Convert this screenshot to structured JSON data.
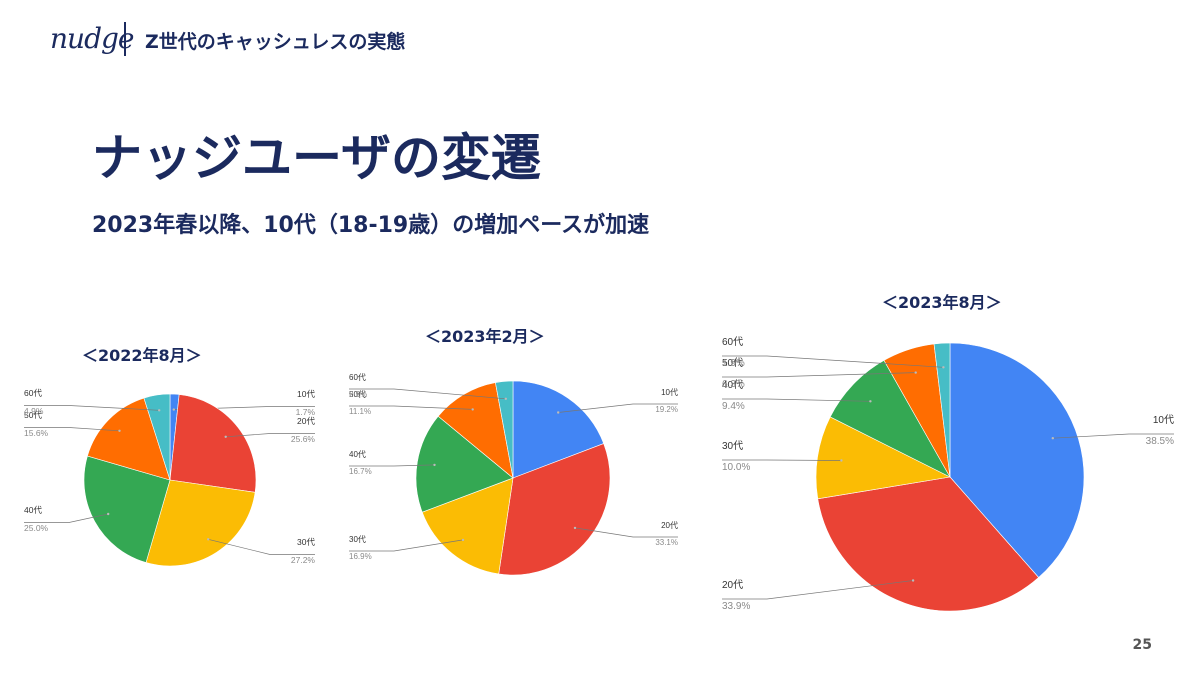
{
  "header": {
    "logo": "nudge",
    "title": "Z世代のキャッシュレスの実態"
  },
  "main": {
    "title": "ナッジユーザの変遷",
    "subtitle": "2023年春以降、10代（18-19歳）の増加ペースが加速"
  },
  "page_number": "25",
  "colors": {
    "10代": "#4285F4",
    "20代": "#EA4335",
    "30代": "#FBBC04",
    "40代": "#34A853",
    "50代": "#FF6D01",
    "60代": "#46BDC6"
  },
  "chart_data": [
    {
      "type": "pie",
      "title": "＜2022年8月＞",
      "categories": [
        "10代",
        "20代",
        "30代",
        "40代",
        "50代",
        "60代"
      ],
      "values": [
        1.7,
        25.6,
        27.2,
        25.0,
        15.6,
        4.9
      ],
      "labels": [
        "1.7%",
        "25.6%",
        "27.2%",
        "25.0%",
        "15.6%",
        "4.9%"
      ]
    },
    {
      "type": "pie",
      "title": "＜2023年2月＞",
      "categories": [
        "10代",
        "20代",
        "30代",
        "40代",
        "50代",
        "60代"
      ],
      "values": [
        19.2,
        33.1,
        16.9,
        16.7,
        11.1,
        2.9
      ],
      "labels": [
        "19.2%",
        "33.1%",
        "16.9%",
        "16.7%",
        "11.1%",
        "2.9%"
      ]
    },
    {
      "type": "pie",
      "title": "＜2023年8月＞",
      "categories": [
        "10代",
        "20代",
        "30代",
        "40代",
        "50代",
        "60代"
      ],
      "values": [
        38.5,
        33.9,
        10.0,
        9.4,
        6.3,
        1.9
      ],
      "labels": [
        "38.5%",
        "33.9%",
        "10.0%",
        "9.4%",
        "6.3%",
        "1.9%"
      ]
    }
  ]
}
